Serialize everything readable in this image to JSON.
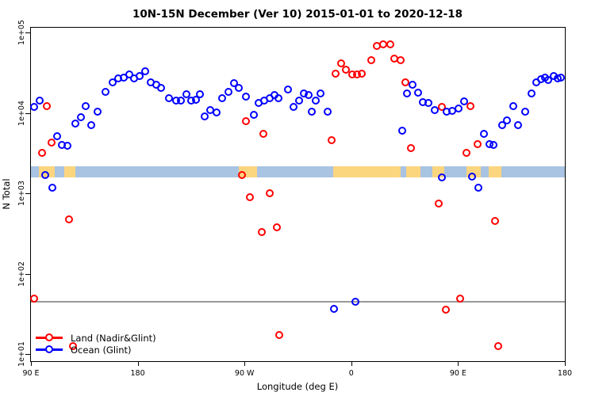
{
  "title": "10N-15N December (Ver 10)   2015-01-01 to 2020-12-18",
  "chart_data": {
    "type": "scatter",
    "title": "10N-15N December (Ver 10)   2015-01-01 to 2020-12-18",
    "xlabel": "Longitude (deg E)",
    "ylabel": "N Total",
    "x_axis": {
      "note": "longitude axis spans 450 deg starting at 90E going eastward (90E,180,90W,0,90E,180)",
      "range_deg": [
        0,
        450
      ],
      "ticks": [
        {
          "off": 0,
          "label": "90 E"
        },
        {
          "off": 90,
          "label": "180"
        },
        {
          "off": 180,
          "label": "90 W"
        },
        {
          "off": 270,
          "label": "0"
        },
        {
          "off": 360,
          "label": "90 E"
        },
        {
          "off": 450,
          "label": "180"
        }
      ]
    },
    "y_axis": {
      "scale": "log10",
      "range": [
        10,
        100000
      ],
      "ticks": [
        {
          "exp": 1,
          "label": "1e+01"
        },
        {
          "exp": 2,
          "label": "1e+02"
        },
        {
          "exp": 3,
          "label": "1e+03"
        },
        {
          "exp": 4,
          "label": "1e+04"
        },
        {
          "exp": 5,
          "label": "1e+05"
        }
      ]
    },
    "legend_position": "bottom-left",
    "grid": false,
    "reference_line": {
      "value": 46,
      "color": "#999999"
    },
    "map_band": {
      "note": "coastline strip: ocean=light blue, land=tan, plotted between ~1575 and ~2160",
      "value_top": 2160,
      "value_bottom": 1575,
      "ocean_color": "#a9c3e2",
      "land_color": "#fcd57f",
      "land_segments_off_deg": [
        [
          6.7,
          20.0
        ],
        [
          28.0,
          37.4
        ],
        [
          174.9,
          190.3
        ],
        [
          255.0,
          311.8
        ],
        [
          316.4,
          328.5
        ],
        [
          338.5,
          348.5
        ],
        [
          367.2,
          379.2
        ],
        [
          385.9,
          396.6
        ]
      ]
    },
    "series": [
      {
        "name": "Land (Nadir&Glint)",
        "color": "#ff0000",
        "points": [
          [
            3.3,
            48
          ],
          [
            10.0,
            3110
          ],
          [
            13.4,
            11900
          ],
          [
            18.0,
            4270
          ],
          [
            32.7,
            463
          ],
          [
            36.1,
            12.5
          ],
          [
            178.3,
            1650
          ],
          [
            181.6,
            7880
          ],
          [
            185.0,
            873
          ],
          [
            195.0,
            322
          ],
          [
            196.3,
            5480
          ],
          [
            201.6,
            1000
          ],
          [
            207.6,
            369
          ],
          [
            209.6,
            17
          ],
          [
            253.7,
            4470
          ],
          [
            257.0,
            30700
          ],
          [
            261.7,
            40400
          ],
          [
            265.7,
            34400
          ],
          [
            271.0,
            30000
          ],
          [
            275.0,
            30000
          ],
          [
            279.0,
            30700
          ],
          [
            287.1,
            45200
          ],
          [
            291.7,
            66500
          ],
          [
            297.1,
            71100
          ],
          [
            303.1,
            71100
          ],
          [
            306.4,
            47300
          ],
          [
            311.8,
            45200
          ],
          [
            315.8,
            23900
          ],
          [
            320.5,
            3640
          ],
          [
            343.8,
            744
          ],
          [
            346.5,
            11600
          ],
          [
            349.8,
            35
          ],
          [
            361.8,
            48
          ],
          [
            367.2,
            3110
          ],
          [
            370.5,
            11900
          ],
          [
            376.5,
            4080
          ],
          [
            391.2,
            452
          ],
          [
            393.9,
            12.5
          ]
        ]
      },
      {
        "name": "Ocean (Glint)",
        "color": "#0000ff",
        "points": [
          [
            3.3,
            11600
          ],
          [
            8.0,
            13900
          ],
          [
            12.7,
            1650
          ],
          [
            18.7,
            1150
          ],
          [
            22.7,
            5120
          ],
          [
            26.7,
            3990
          ],
          [
            31.4,
            3900
          ],
          [
            38.0,
            7360
          ],
          [
            42.7,
            8630
          ],
          [
            46.7,
            12100
          ],
          [
            51.4,
            7030
          ],
          [
            56.7,
            10300
          ],
          [
            63.4,
            18200
          ],
          [
            69.4,
            23900
          ],
          [
            74.1,
            26800
          ],
          [
            78.8,
            27400
          ],
          [
            83.5,
            29400
          ],
          [
            87.5,
            26800
          ],
          [
            92.1,
            28700
          ],
          [
            96.8,
            32200
          ],
          [
            101.5,
            23900
          ],
          [
            106.1,
            21900
          ],
          [
            110.2,
            20400
          ],
          [
            116.8,
            15200
          ],
          [
            122.8,
            13900
          ],
          [
            126.9,
            13900
          ],
          [
            131.5,
            17000
          ],
          [
            135.5,
            13900
          ],
          [
            139.5,
            14500
          ],
          [
            142.9,
            17000
          ],
          [
            146.9,
            8830
          ],
          [
            151.6,
            10800
          ],
          [
            156.9,
            10100
          ],
          [
            161.6,
            15200
          ],
          [
            166.9,
            18200
          ],
          [
            171.6,
            23400
          ],
          [
            175.6,
            20000
          ],
          [
            181.6,
            15600
          ],
          [
            188.3,
            9240
          ],
          [
            192.3,
            13000
          ],
          [
            196.9,
            13900
          ],
          [
            201.6,
            15200
          ],
          [
            205.6,
            16300
          ],
          [
            208.9,
            15200
          ],
          [
            217.0,
            19100
          ],
          [
            221.6,
            11600
          ],
          [
            226.3,
            13900
          ],
          [
            230.3,
            17400
          ],
          [
            234.3,
            16300
          ],
          [
            237.0,
            10300
          ],
          [
            240.3,
            13900
          ],
          [
            244.3,
            17400
          ],
          [
            250.4,
            10300
          ],
          [
            255.7,
            36
          ],
          [
            273.7,
            44
          ],
          [
            313.1,
            5870
          ],
          [
            317.1,
            17400
          ],
          [
            321.8,
            21900
          ],
          [
            326.5,
            17800
          ],
          [
            330.5,
            13300
          ],
          [
            335.2,
            13000
          ],
          [
            340.5,
            10800
          ],
          [
            346.5,
            1540
          ],
          [
            350.5,
            10300
          ],
          [
            355.2,
            10500
          ],
          [
            360.5,
            11100
          ],
          [
            365.2,
            13600
          ],
          [
            371.9,
            1610
          ],
          [
            377.2,
            1150
          ],
          [
            381.9,
            5360
          ],
          [
            386.6,
            4080
          ],
          [
            389.9,
            3990
          ],
          [
            397.2,
            7030
          ],
          [
            401.3,
            8060
          ],
          [
            406.6,
            11900
          ],
          [
            410.6,
            6880
          ],
          [
            416.6,
            10300
          ],
          [
            422.0,
            17400
          ],
          [
            426.0,
            23900
          ],
          [
            430.0,
            26200
          ],
          [
            433.3,
            27400
          ],
          [
            436.6,
            25600
          ],
          [
            440.7,
            28700
          ],
          [
            444.0,
            26800
          ],
          [
            446.7,
            27400
          ]
        ]
      }
    ]
  },
  "legend": {
    "items": [
      {
        "label": "Land (Nadir&Glint)",
        "color": "#ff0000"
      },
      {
        "label": "Ocean (Glint)",
        "color": "#0000ff"
      }
    ]
  }
}
